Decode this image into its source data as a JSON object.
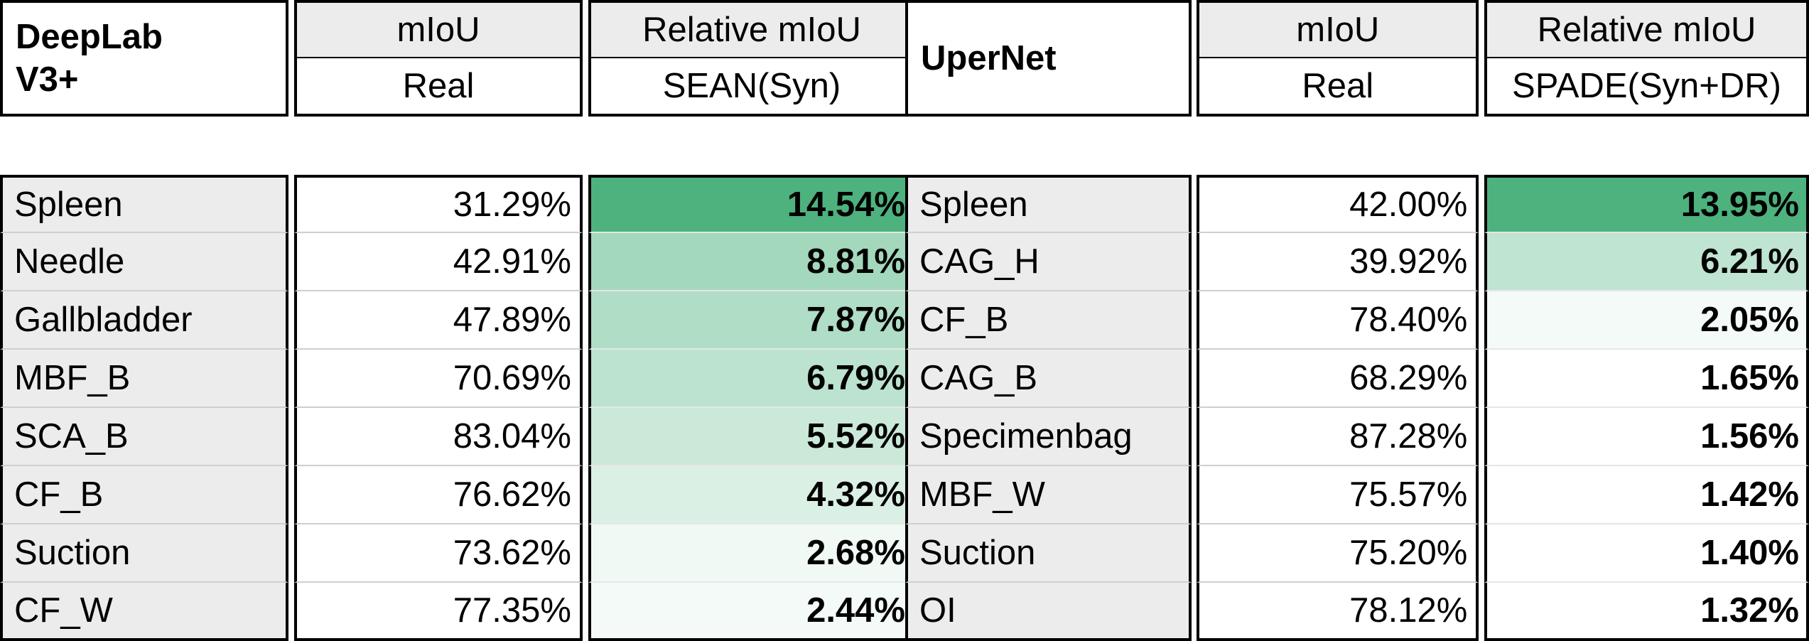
{
  "left": {
    "title_line1": "DeepLab",
    "title_line2": "V3+",
    "col_real_top": "mIoU",
    "col_real_sub": "Real",
    "col_rel_top": "Relative mIoU",
    "col_rel_sub": "SEAN(Syn)",
    "rows": [
      {
        "name": "Spleen",
        "real": "31.29%",
        "rel": "14.54%",
        "shade": "#4db27e"
      },
      {
        "name": "Needle",
        "real": "42.91%",
        "rel": "8.81%",
        "shade": "#a3d8bc"
      },
      {
        "name": "Gallbladder",
        "real": "47.89%",
        "rel": "7.87%",
        "shade": "#afddc5"
      },
      {
        "name": "MBF_B",
        "real": "70.69%",
        "rel": "6.79%",
        "shade": "#bce3cf"
      },
      {
        "name": "SCA_B",
        "real": "83.04%",
        "rel": "5.52%",
        "shade": "#cbe9d9"
      },
      {
        "name": "CF_B",
        "real": "76.62%",
        "rel": "4.32%",
        "shade": "#dbf0e4"
      },
      {
        "name": "Suction",
        "real": "73.62%",
        "rel": "2.68%",
        "shade": "#f1f9f5"
      },
      {
        "name": "CF_W",
        "real": "77.35%",
        "rel": "2.44%",
        "shade": "#f4faf7"
      }
    ]
  },
  "right": {
    "title": "UperNet",
    "col_real_top": "mIoU",
    "col_real_sub": "Real",
    "col_rel_top": "Relative mIoU",
    "col_rel_sub": "SPADE(Syn+DR)",
    "rows": [
      {
        "name": "Spleen",
        "real": "42.00%",
        "rel": "13.95%",
        "shade": "#4db27e"
      },
      {
        "name": "CAG_H",
        "real": "39.92%",
        "rel": "6.21%",
        "shade": "#bfe4d1"
      },
      {
        "name": "CF_B",
        "real": "78.40%",
        "rel": "2.05%",
        "shade": "#f4faf7"
      },
      {
        "name": "CAG_B",
        "real": "68.29%",
        "rel": "1.65%",
        "shade": "#ffffff"
      },
      {
        "name": "Specimenbag",
        "real": "87.28%",
        "rel": "1.56%",
        "shade": "#ffffff"
      },
      {
        "name": "MBF_W",
        "real": "75.57%",
        "rel": "1.42%",
        "shade": "#ffffff"
      },
      {
        "name": "Suction",
        "real": "75.20%",
        "rel": "1.40%",
        "shade": "#ffffff"
      },
      {
        "name": "OI",
        "real": "78.12%",
        "rel": "1.32%",
        "shade": "#ffffff"
      }
    ]
  }
}
